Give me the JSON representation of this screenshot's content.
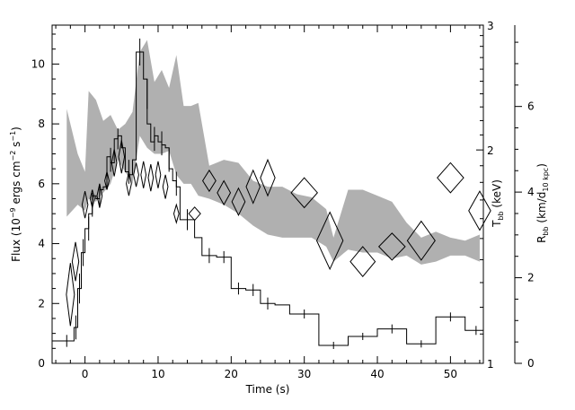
{
  "chart_data": {
    "type": "line",
    "title": "",
    "grid": false,
    "x_axis": {
      "label": "Time (s)",
      "range": [
        -4.5,
        54.5
      ],
      "ticks": [
        "0",
        "10",
        "20",
        "30",
        "40",
        "50"
      ],
      "tick_values": [
        0,
        10,
        20,
        30,
        40,
        50
      ]
    },
    "y_axis_left": {
      "label_parts": [
        "Flux (10",
        "−9",
        " ergs cm",
        "−2",
        " s",
        "−1",
        ")"
      ],
      "range": [
        0,
        11.3
      ],
      "ticks": [
        "0",
        "2",
        "4",
        "6",
        "8",
        "10"
      ],
      "tick_values": [
        0,
        2,
        4,
        6,
        8,
        10
      ]
    },
    "y_axis_temperature": {
      "label_parts": [
        "T",
        "bb",
        " (keV)"
      ],
      "scale": "log",
      "range": [
        1,
        3
      ],
      "ticks": [
        "1",
        "2",
        "3"
      ],
      "tick_values": [
        1,
        2,
        3
      ]
    },
    "y_axis_radius": {
      "label_parts": [
        "R",
        "bb",
        " (km/d",
        "10 kpc",
        ")"
      ],
      "range": [
        0,
        7.9
      ],
      "ticks": [
        "0",
        "2",
        "4",
        "6"
      ],
      "tick_values": [
        0,
        2,
        4,
        6
      ]
    },
    "flux_histogram": {
      "bins": [
        [
          -4.5,
          -1.5,
          0.75
        ],
        [
          -1.5,
          -1,
          1.2
        ],
        [
          -1,
          -0.5,
          2.5
        ],
        [
          -0.5,
          0,
          3.7
        ],
        [
          0,
          0.5,
          4.5
        ],
        [
          0.5,
          1,
          5.0
        ],
        [
          1,
          1.5,
          5.6
        ],
        [
          1.5,
          2,
          5.5
        ],
        [
          2,
          2.5,
          5.8
        ],
        [
          2.5,
          3,
          5.9
        ],
        [
          3,
          3.5,
          6.9
        ],
        [
          3.5,
          4,
          6.7
        ],
        [
          4,
          4.5,
          7.5
        ],
        [
          4.5,
          5,
          7.6
        ],
        [
          5,
          5.5,
          7.2
        ],
        [
          5.5,
          6,
          6.4
        ],
        [
          6,
          6.5,
          6.3
        ],
        [
          6.5,
          7,
          6.8
        ],
        [
          7,
          7.5,
          10.4
        ],
        [
          7.5,
          8,
          10.4
        ],
        [
          8,
          8.5,
          9.5
        ],
        [
          8.5,
          9,
          8.0
        ],
        [
          9,
          9.5,
          7.4
        ],
        [
          9.5,
          10,
          7.6
        ],
        [
          10,
          10.5,
          7.4
        ],
        [
          10.5,
          11,
          7.3
        ],
        [
          11,
          11.5,
          7.2
        ],
        [
          11.5,
          12,
          6.5
        ],
        [
          12,
          12.5,
          6.1
        ],
        [
          12.5,
          13,
          5.9
        ],
        [
          13,
          15,
          4.8
        ],
        [
          15,
          16,
          4.2
        ],
        [
          16,
          17,
          3.6
        ],
        [
          17,
          18,
          3.6
        ],
        [
          18,
          20,
          3.55
        ],
        [
          20,
          22,
          2.5
        ],
        [
          22,
          24,
          2.45
        ],
        [
          24,
          26,
          2.0
        ],
        [
          26,
          28,
          1.95
        ],
        [
          28,
          32,
          1.65
        ],
        [
          32,
          36,
          0.6
        ],
        [
          36,
          40,
          0.9
        ],
        [
          40,
          44,
          1.15
        ],
        [
          44,
          48,
          0.65
        ],
        [
          48,
          52,
          1.55
        ],
        [
          52,
          54.5,
          1.1
        ]
      ],
      "errors": [
        [
          -2.5,
          0.75,
          0.2
        ],
        [
          -1.25,
          1.2,
          0.4
        ],
        [
          -0.75,
          2.5,
          0.5
        ],
        [
          -0.25,
          3.7,
          0.45
        ],
        [
          0.5,
          4.5,
          0.4
        ],
        [
          1,
          5.3,
          0.4
        ],
        [
          2,
          5.6,
          0.4
        ],
        [
          3.5,
          6.8,
          0.4
        ],
        [
          4.5,
          7.5,
          0.35
        ],
        [
          6,
          6.4,
          0.4
        ],
        [
          7.5,
          10.4,
          0.45
        ],
        [
          8.5,
          9.0,
          0.5
        ],
        [
          9.5,
          7.5,
          0.4
        ],
        [
          10.5,
          7.35,
          0.4
        ],
        [
          11.5,
          6.8,
          0.4
        ],
        [
          12.5,
          6.0,
          0.4
        ],
        [
          14,
          4.8,
          0.35
        ],
        [
          17,
          3.6,
          0.25
        ],
        [
          19,
          3.55,
          0.2
        ],
        [
          21,
          2.5,
          0.2
        ],
        [
          23,
          2.45,
          0.2
        ],
        [
          25,
          2.0,
          0.2
        ],
        [
          30,
          1.65,
          0.15
        ],
        [
          34,
          0.6,
          0.12
        ],
        [
          38,
          0.9,
          0.12
        ],
        [
          42,
          1.15,
          0.15
        ],
        [
          46,
          0.65,
          0.12
        ],
        [
          50,
          1.55,
          0.15
        ],
        [
          53.5,
          1.1,
          0.15
        ]
      ]
    },
    "temperature_band": {
      "x": [
        -2.5,
        -1,
        0,
        0.5,
        1.5,
        2.5,
        3.5,
        4.5,
        5.5,
        6.5,
        7.5,
        8.5,
        9.5,
        10.5,
        11.5,
        12.5,
        13.5,
        14.5,
        15.5,
        17,
        19,
        21,
        23,
        25,
        27,
        29,
        31,
        33,
        34,
        36,
        38,
        40,
        42,
        44,
        46,
        48,
        50,
        52,
        54
      ],
      "upper": [
        8.5,
        7.0,
        6.4,
        9.1,
        8.8,
        8.1,
        8.3,
        7.8,
        8.0,
        8.4,
        10.4,
        10.8,
        9.4,
        9.8,
        9.2,
        10.3,
        8.6,
        8.6,
        8.7,
        6.6,
        6.8,
        6.7,
        6.1,
        5.9,
        5.9,
        5.65,
        5.55,
        5.15,
        4.2,
        5.8,
        5.8,
        5.6,
        5.4,
        4.7,
        4.2,
        4.4,
        4.2,
        4.1,
        4.3
      ],
      "lower": [
        4.9,
        5.3,
        5.1,
        5.5,
        5.4,
        5.7,
        6.0,
        6.8,
        6.4,
        6.0,
        7.6,
        7.2,
        7.0,
        7.0,
        7.1,
        6.3,
        6.0,
        6.0,
        5.6,
        5.5,
        5.3,
        5.0,
        4.6,
        4.3,
        4.2,
        4.2,
        4.2,
        3.9,
        3.4,
        3.8,
        3.7,
        3.7,
        3.5,
        3.6,
        3.3,
        3.4,
        3.6,
        3.6,
        3.4
      ]
    },
    "radius_diamonds": {
      "points": [
        [
          -2.0,
          2.3,
          0.55,
          1.05
        ],
        [
          -1.3,
          3.4,
          0.45,
          0.65
        ],
        [
          0.0,
          5.3,
          0.4,
          0.45
        ],
        [
          1.0,
          5.5,
          0.3,
          0.3
        ],
        [
          2.0,
          5.6,
          0.35,
          0.4
        ],
        [
          3.0,
          6.1,
          0.3,
          0.3
        ],
        [
          4.0,
          6.7,
          0.35,
          0.45
        ],
        [
          5.0,
          6.9,
          0.4,
          0.55
        ],
        [
          6.0,
          6.0,
          0.35,
          0.4
        ],
        [
          7.0,
          6.3,
          0.35,
          0.4
        ],
        [
          8.0,
          6.3,
          0.35,
          0.45
        ],
        [
          9.0,
          6.2,
          0.35,
          0.45
        ],
        [
          10.0,
          6.3,
          0.35,
          0.45
        ],
        [
          11.0,
          5.9,
          0.35,
          0.4
        ],
        [
          12.5,
          5.0,
          0.35,
          0.3
        ],
        [
          15.0,
          5.0,
          0.8,
          0.22
        ],
        [
          17.0,
          6.1,
          0.9,
          0.35
        ],
        [
          19.0,
          5.7,
          0.9,
          0.4
        ],
        [
          21.0,
          5.4,
          0.9,
          0.45
        ],
        [
          23.0,
          5.9,
          0.95,
          0.55
        ],
        [
          25.0,
          6.2,
          1.0,
          0.6
        ],
        [
          30.0,
          5.7,
          1.8,
          0.5
        ],
        [
          33.5,
          4.1,
          1.8,
          0.95
        ],
        [
          38.0,
          3.4,
          1.7,
          0.5
        ],
        [
          42.0,
          3.9,
          1.8,
          0.45
        ],
        [
          46.0,
          4.1,
          1.9,
          0.65
        ],
        [
          50.0,
          6.2,
          1.8,
          0.5
        ],
        [
          54.0,
          5.1,
          1.5,
          0.65
        ]
      ]
    }
  }
}
